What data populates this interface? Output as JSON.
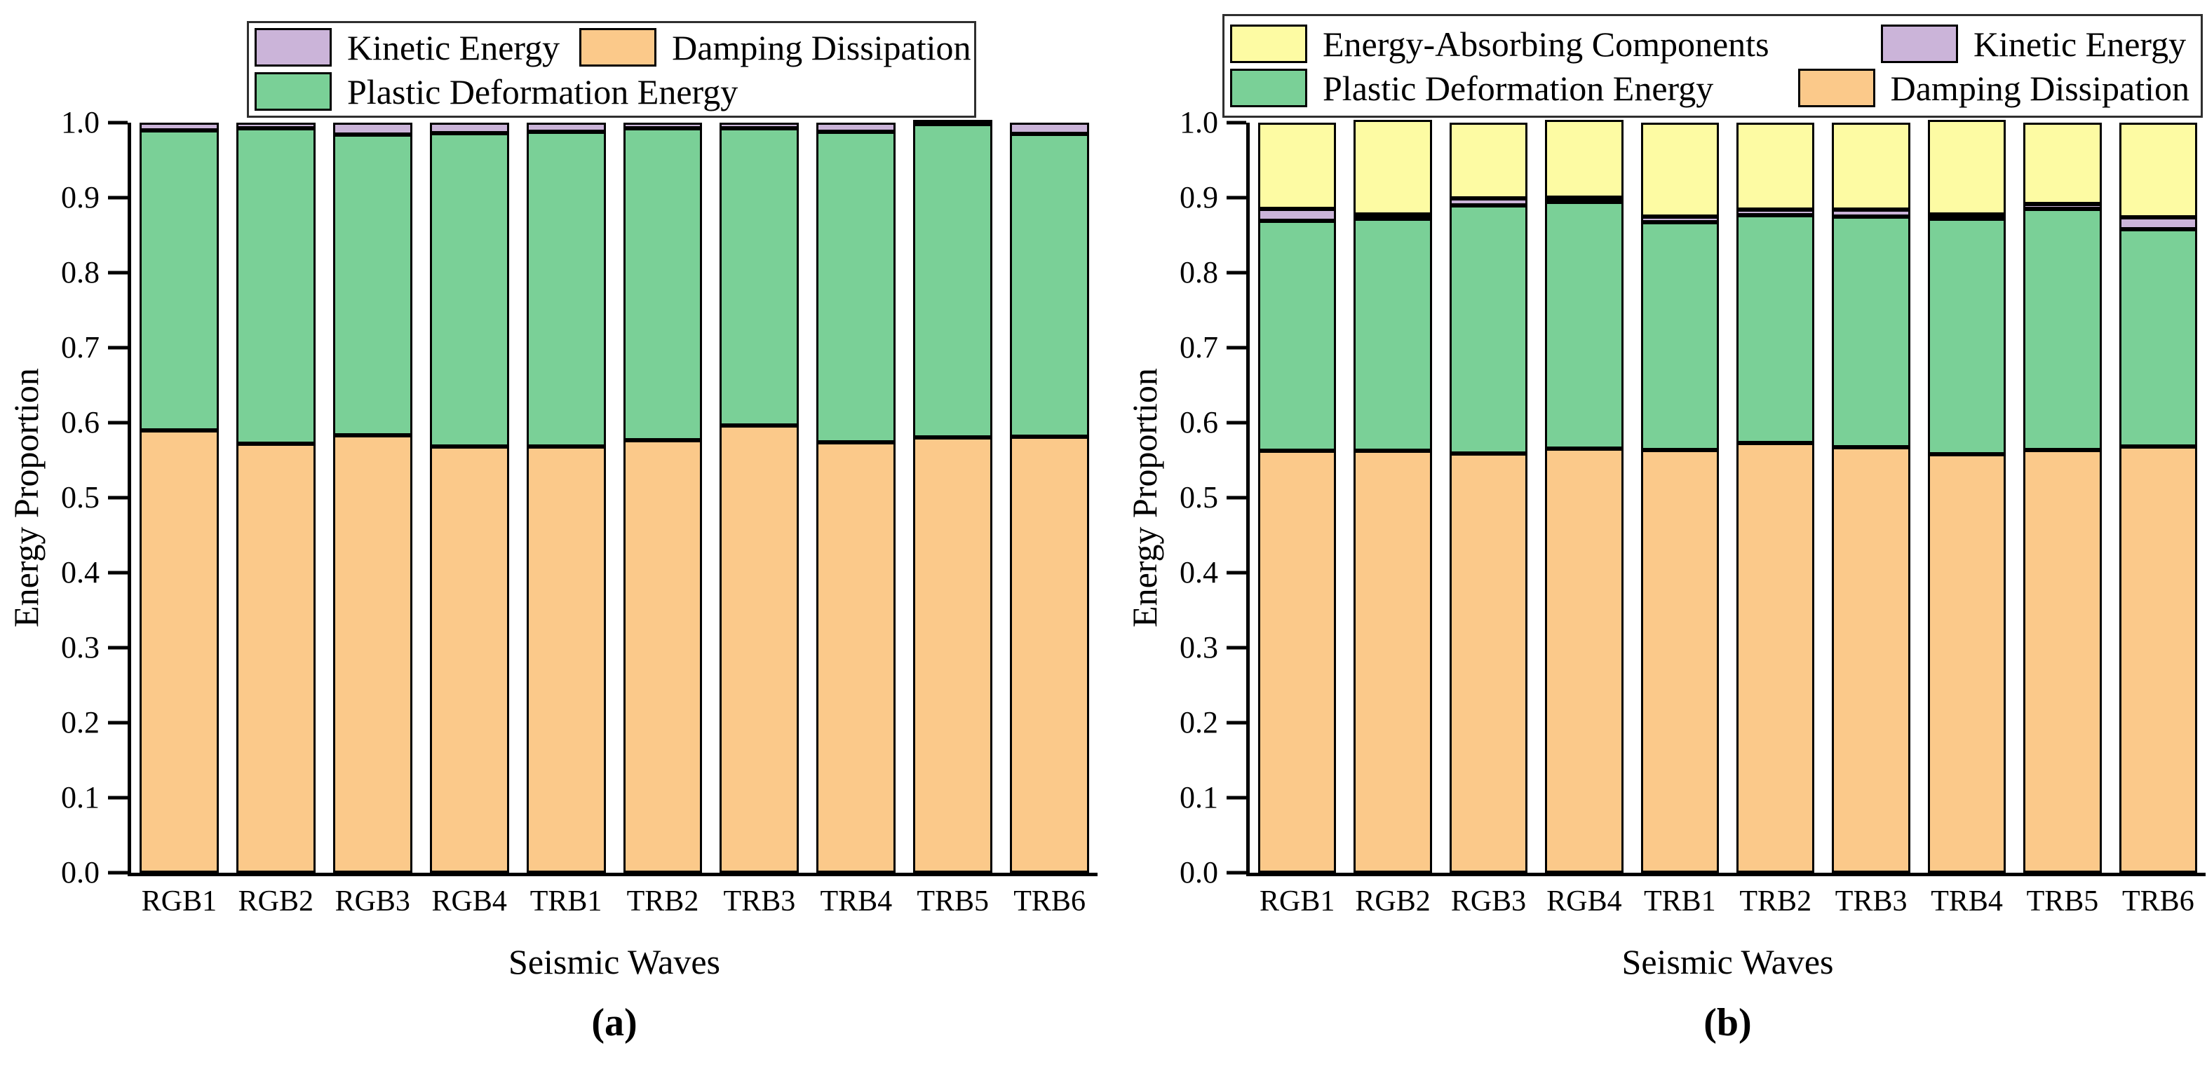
{
  "figure": {
    "background": "#ffffff",
    "palette": {
      "damping_orange": "#FBC98A",
      "plastic_green": "#7AD097",
      "kinetic_purple": "#CBB4D9",
      "absorbing_yellow": "#FDFBA3",
      "axis_black": "#000000"
    }
  },
  "chart_data": [
    {
      "type": "bar",
      "stacked": true,
      "panel_letter": "(a)",
      "title": "",
      "xlabel": "Seismic Waves",
      "ylabel": "Energy Proportion",
      "ylim": [
        0.0,
        1.0
      ],
      "grid": false,
      "legend_position": "top",
      "yticks": [
        "1.0",
        "0.9",
        "0.8",
        "0.7",
        "0.6",
        "0.5",
        "0.4",
        "0.3",
        "0.2",
        "0.1",
        "0.0"
      ],
      "categories": [
        "RGB1",
        "RGB2",
        "RGB3",
        "RGB4",
        "TRB1",
        "TRB2",
        "TRB3",
        "TRB4",
        "TRB5",
        "TRB6"
      ],
      "series": [
        {
          "name": "Damping Dissipation",
          "color": "#FBC98A",
          "values": [
            0.59,
            0.572,
            0.583,
            0.568,
            0.568,
            0.577,
            0.596,
            0.574,
            0.58,
            0.581
          ]
        },
        {
          "name": "Plastic Deformation Energy",
          "color": "#7AD097",
          "values": [
            0.4,
            0.421,
            0.401,
            0.418,
            0.42,
            0.416,
            0.397,
            0.414,
            0.418,
            0.404
          ]
        },
        {
          "name": "Kinetic Energy",
          "color": "#CBB4D9",
          "values": [
            0.01,
            0.007,
            0.016,
            0.014,
            0.012,
            0.007,
            0.007,
            0.012,
            0.002,
            0.015
          ]
        }
      ],
      "legend_rows": [
        [
          "Kinetic Energy",
          "Damping Dissipation"
        ],
        [
          "Plastic Deformation Energy"
        ]
      ]
    },
    {
      "type": "bar",
      "stacked": true,
      "panel_letter": "(b)",
      "title": "",
      "xlabel": "Seismic Waves",
      "ylabel": "Energy Proportion",
      "ylim": [
        0.0,
        1.0
      ],
      "grid": false,
      "legend_position": "top",
      "yticks": [
        "1.0",
        "0.9",
        "0.8",
        "0.7",
        "0.6",
        "0.5",
        "0.4",
        "0.3",
        "0.2",
        "0.1",
        "0.0"
      ],
      "categories": [
        "RGB1",
        "RGB2",
        "RGB3",
        "RGB4",
        "TRB1",
        "TRB2",
        "TRB3",
        "TRB4",
        "TRB5",
        "TRB6"
      ],
      "series": [
        {
          "name": "Damping Dissipation",
          "color": "#FBC98A",
          "values": [
            0.563,
            0.563,
            0.559,
            0.565,
            0.564,
            0.573,
            0.567,
            0.558,
            0.564,
            0.568
          ]
        },
        {
          "name": "Plastic Deformation Energy",
          "color": "#7AD097",
          "values": [
            0.306,
            0.309,
            0.331,
            0.329,
            0.303,
            0.304,
            0.308,
            0.314,
            0.321,
            0.29
          ]
        },
        {
          "name": "Kinetic Energy",
          "color": "#CBB4D9",
          "values": [
            0.016,
            0.002,
            0.009,
            0.002,
            0.008,
            0.007,
            0.009,
            0.002,
            0.007,
            0.016
          ]
        },
        {
          "name": "Energy-Absorbing Components",
          "color": "#FDFBA3",
          "values": [
            0.115,
            0.126,
            0.101,
            0.104,
            0.125,
            0.116,
            0.116,
            0.126,
            0.108,
            0.126
          ]
        }
      ],
      "legend_rows": [
        [
          "Energy-Absorbing Components",
          "Kinetic Energy"
        ],
        [
          "Plastic Deformation Energy",
          "Damping Dissipation"
        ]
      ]
    }
  ]
}
